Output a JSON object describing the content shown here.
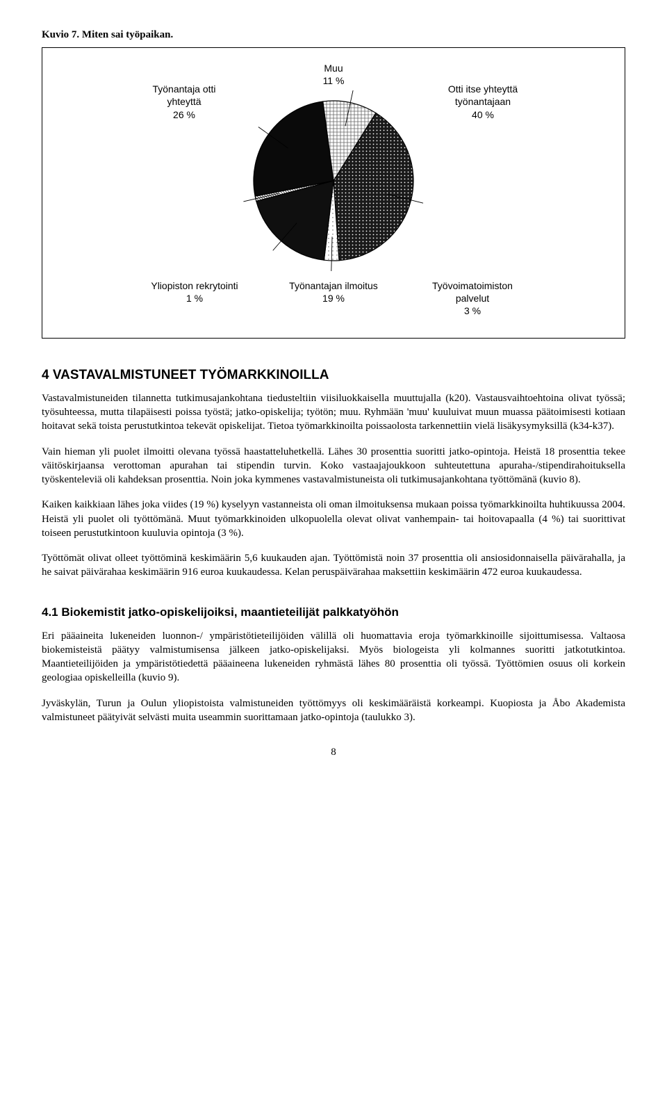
{
  "figure_title": "Kuvio 7. Miten sai työpaikan.",
  "pie_chart": {
    "type": "pie",
    "labels": {
      "top_mid": "Muu\n11 %",
      "left": "Työnantaja otti\nyhteyttä\n26 %",
      "right": "Otti itse yhteyttä\ntyönantajaan\n40 %",
      "bottom_left": "Yliopiston rekrytointi\n1 %",
      "bottom_mid": "Työnantajan ilmoitus\n19 %",
      "bottom_right": "Työvoimatoimiston\npalvelut\n3 %"
    },
    "slices": [
      {
        "name": "Otti itse yhteyttä työnantajaan",
        "value": 40,
        "pattern": "crosshatch-dark"
      },
      {
        "name": "Työvoimatoimiston palvelut",
        "value": 3,
        "pattern": "dots-light"
      },
      {
        "name": "Työnantajan ilmoitus",
        "value": 19,
        "pattern": "solid-dark"
      },
      {
        "name": "Yliopiston rekrytointi",
        "value": 1,
        "pattern": "hatch-narrow"
      },
      {
        "name": "Työnantaja otti yhteyttä",
        "value": 26,
        "pattern": "solid-darker"
      },
      {
        "name": "Muu",
        "value": 11,
        "pattern": "grid-light"
      }
    ],
    "start_angle_deg": -58,
    "stroke": "#000000",
    "background": "#ffffff",
    "label_font": "Arial",
    "label_fontsize": 14
  },
  "heading_main": "4 VASTAVALMISTUNEET TYÖMARKKINOILLA",
  "paragraphs_main": [
    "Vastavalmistuneiden tilannetta tutkimusajankohtana tiedusteltiin viisiluokkaisella muuttujalla (k20). Vastausvaihtoehtoina olivat työssä; työsuhteessa, mutta tilapäisesti poissa työstä; jatko-opiskelija; työtön; muu. Ryhmään 'muu' kuuluivat muun muassa päätoimisesti kotiaan hoitavat sekä toista perustutkintoa tekevät opiskelijat. Tietoa työmarkkinoilta poissaolosta tarkennettiin vielä lisäkysymyksillä (k34-k37).",
    "Vain hieman yli puolet ilmoitti olevana työssä haastatteluhetkellä. Lähes 30 prosenttia suoritti jatko-opintoja. Heistä 18 prosenttia tekee väitöskirjaansa verottoman apurahan tai stipendin turvin. Koko vastaajajoukkoon suhteutettuna apuraha-/stipendirahoituksella työskenteleviä oli kahdeksan prosenttia. Noin joka kymmenes vastavalmistuneista oli tutkimusajankohtana työttömänä (kuvio 8).",
    "Kaiken kaikkiaan lähes joka viides (19 %) kyselyyn vastanneista oli oman ilmoituksensa mukaan poissa työmarkkinoilta huhtikuussa 2004. Heistä yli puolet oli työttömänä. Muut työmarkkinoiden ulkopuolella olevat olivat vanhempain- tai hoitovapaalla (4 %) tai suorittivat toiseen perustutkintoon kuuluvia opintoja (3 %).",
    "Työttömät olivat olleet työttöminä keskimäärin 5,6 kuukauden ajan. Työttömistä noin 37 prosenttia oli ansiosidonnaisella päivärahalla, ja he saivat päivärahaa keskimäärin 916 euroa kuukaudessa. Kelan peruspäivärahaa maksettiin keskimäärin 472 euroa kuukaudessa."
  ],
  "heading_sub": "4.1 Biokemistit jatko-opiskelijoiksi, maantieteilijät palkkatyöhön",
  "paragraphs_sub": [
    "Eri pääaineita lukeneiden luonnon-/ ympäristötieteilijöiden välillä oli huomattavia eroja työmarkkinoille sijoittumisessa. Valtaosa biokemisteistä päätyy valmistumisensa jälkeen jatko-opiskelijaksi. Myös biologeista yli kolmannes suoritti jatkotutkintoa. Maantieteilijöiden ja ympäristötiedettä pääaineena lukeneiden ryhmästä lähes 80 prosenttia oli työssä. Työttömien osuus oli korkein geologiaa opiskelleilla (kuvio 9).",
    "Jyväskylän, Turun ja Oulun yliopistoista valmistuneiden työttömyys oli keskimääräistä korkeampi. Kuopiosta ja Åbo Akademista valmistuneet päätyivät selvästi muita useammin suorittamaan jatko-opintoja (taulukko 3)."
  ],
  "page_number": "8"
}
